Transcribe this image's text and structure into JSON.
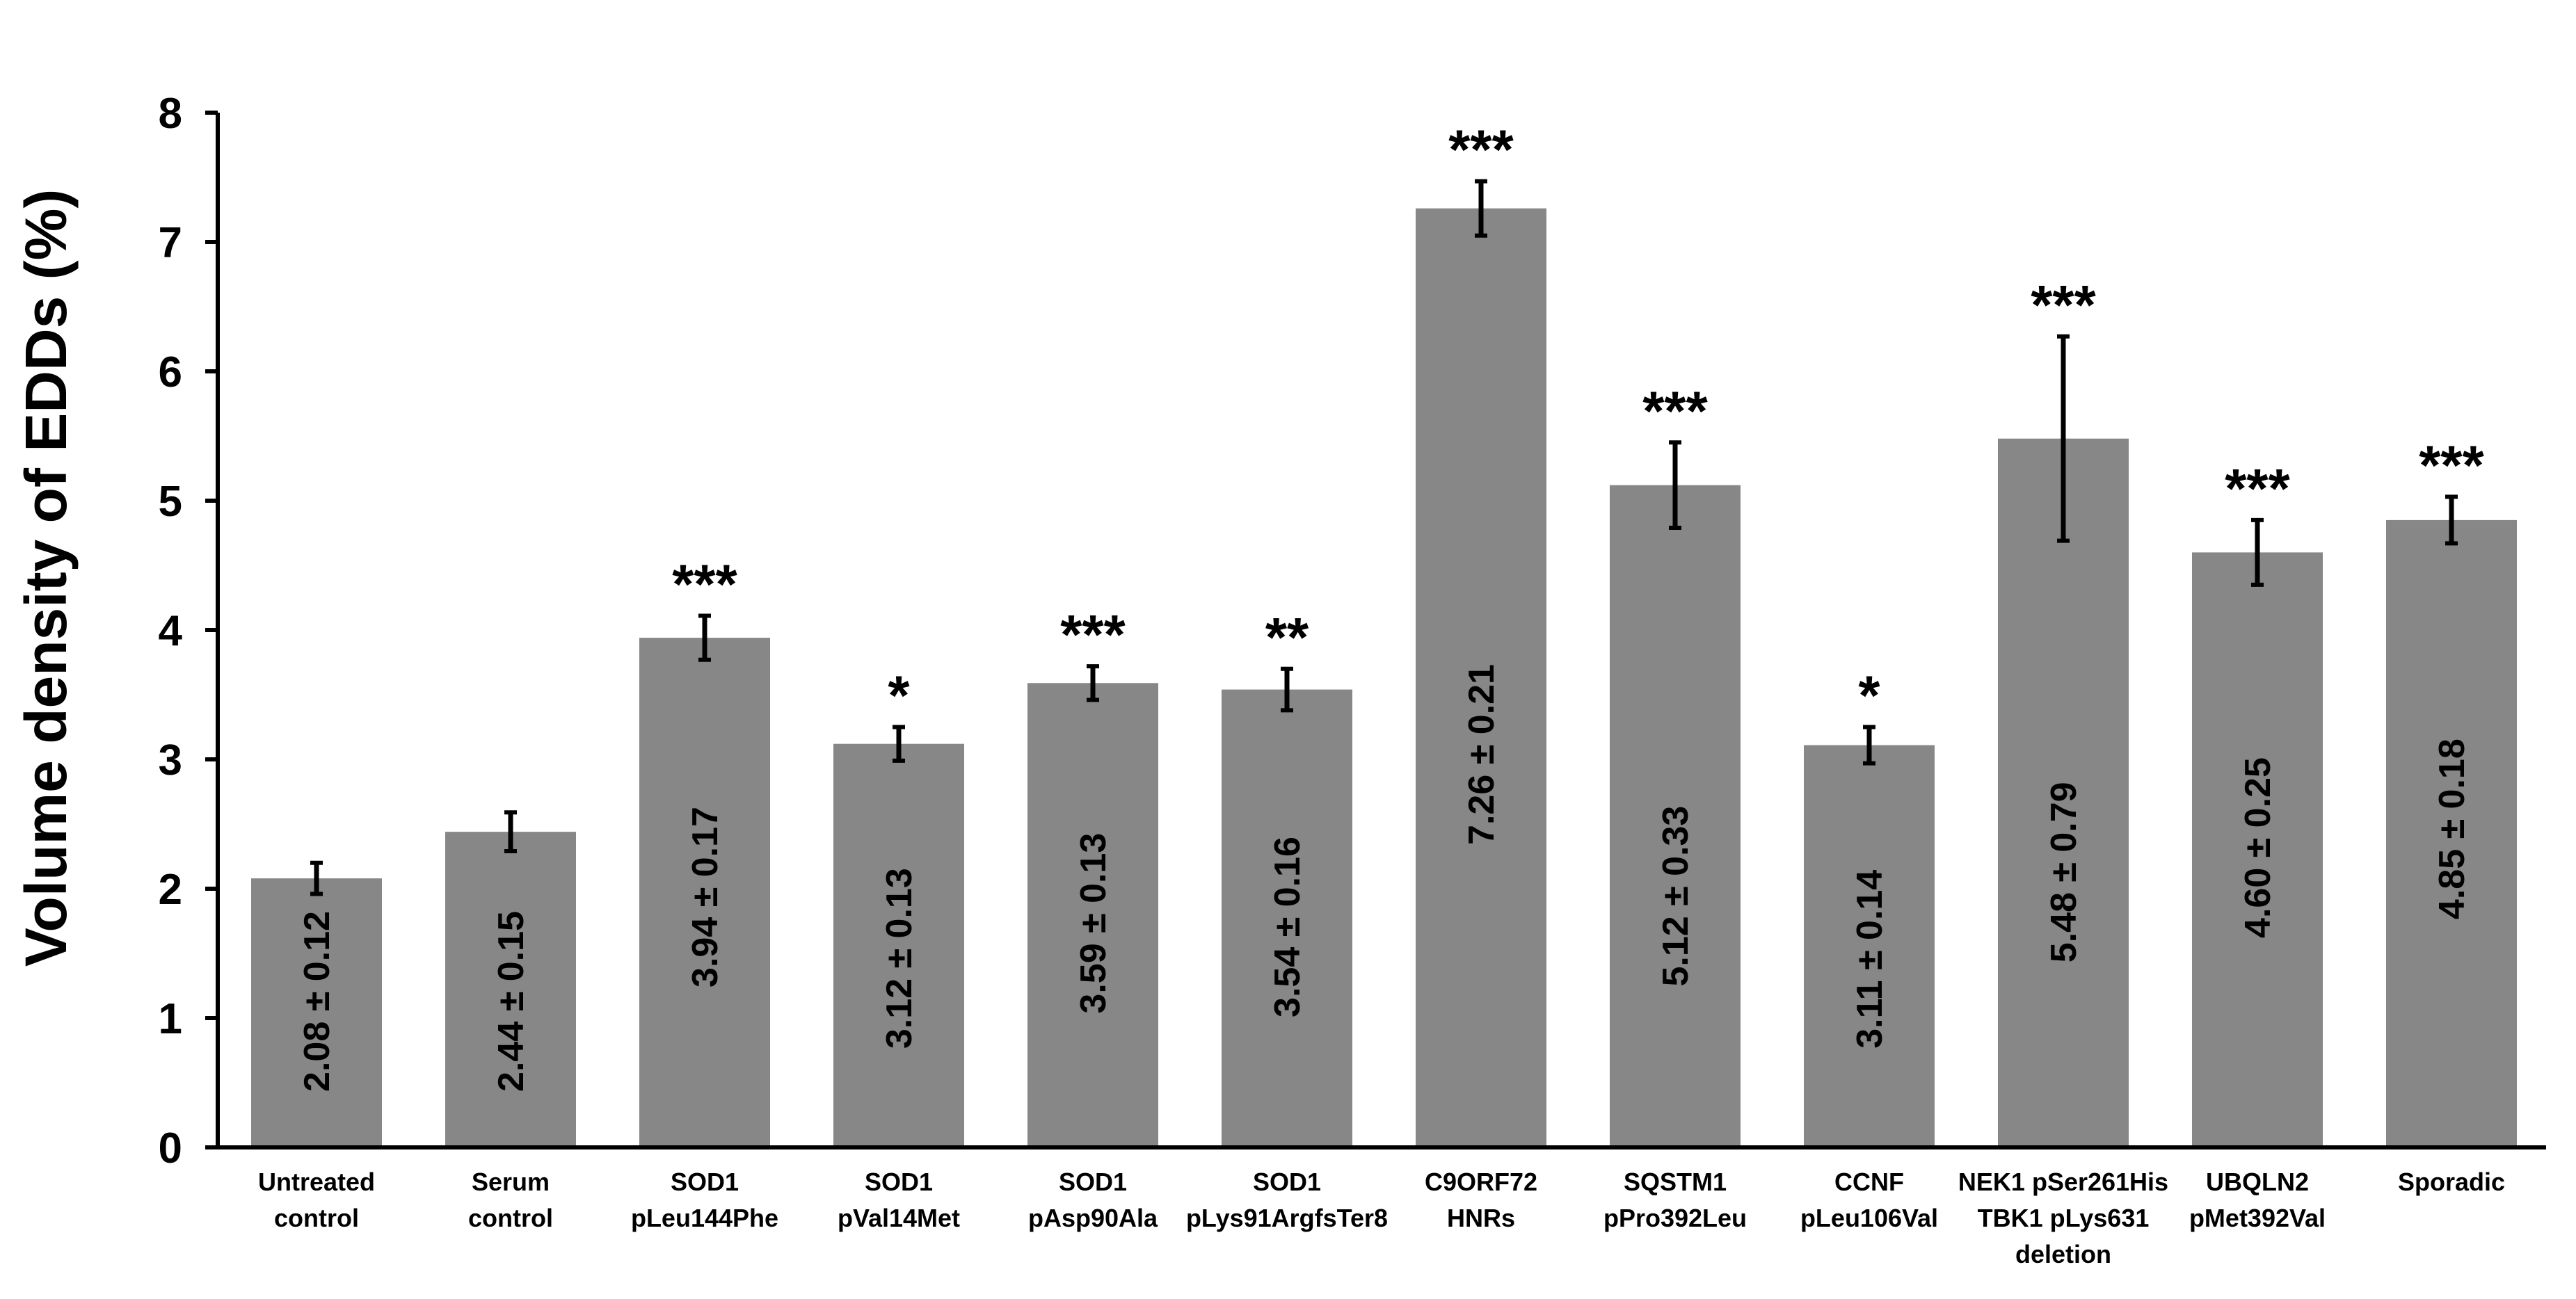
{
  "chart_data": {
    "type": "bar",
    "title": "",
    "xlabel": "",
    "ylabel": "Volume density of EDDs (%)",
    "ylim": [
      0,
      8
    ],
    "yticks": [
      "0",
      "1",
      "2",
      "3",
      "4",
      "5",
      "6",
      "7",
      "8"
    ],
    "grid": false,
    "legend": "none",
    "bar_color": "#878787",
    "categories": [
      [
        "Untreated",
        "control"
      ],
      [
        "Serum",
        "control"
      ],
      [
        "SOD1",
        "pLeu144Phe"
      ],
      [
        "SOD1",
        "pVal14Met"
      ],
      [
        "SOD1",
        "pAsp90Ala"
      ],
      [
        "SOD1",
        "pLys91ArgfsTer8"
      ],
      [
        "C9ORF72",
        "HNRs"
      ],
      [
        "SQSTM1",
        "pPro392Leu"
      ],
      [
        "CCNF",
        "pLeu106Val"
      ],
      [
        "NEK1 pSer261His",
        "TBK1 pLys631",
        "deletion"
      ],
      [
        "UBQLN2",
        "pMet392Val"
      ],
      [
        "Sporadic"
      ]
    ],
    "values": [
      2.08,
      2.44,
      3.94,
      3.12,
      3.59,
      3.54,
      7.26,
      5.12,
      3.11,
      5.48,
      4.6,
      4.85
    ],
    "errors": [
      0.12,
      0.15,
      0.17,
      0.13,
      0.13,
      0.16,
      0.21,
      0.33,
      0.14,
      0.79,
      0.25,
      0.18
    ],
    "value_labels": [
      "2.08 ± 0.12",
      "2.44 ± 0.15",
      "3.94 ± 0.17",
      "3.12 ± 0.13",
      "3.59 ± 0.13",
      "3.54 ± 0.16",
      "7.26 ± 0.21",
      "5.12 ± 0.33",
      "3.11 ± 0.14",
      "5.48 ± 0.79",
      "4.60 ± 0.25",
      "4.85 ± 0.18"
    ],
    "significance": [
      "",
      "",
      "***",
      "*",
      "***",
      "**",
      "***",
      "***",
      "*",
      "***",
      "***",
      "***"
    ]
  }
}
